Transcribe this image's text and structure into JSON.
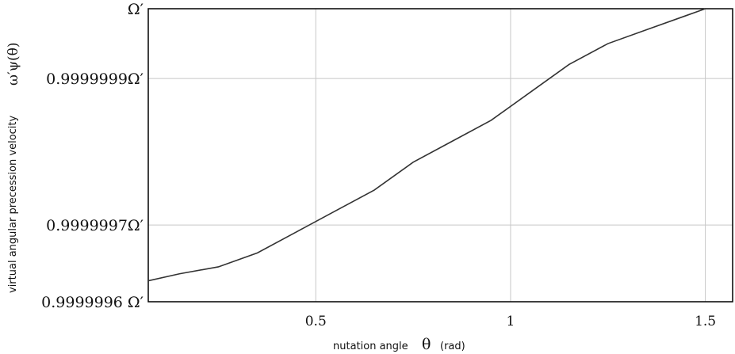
{
  "chart_data": {
    "type": "line",
    "title": "",
    "xlabel": "nutation  angle",
    "xlabel_symbol": "θ",
    "xlabel_unit": "(rad)",
    "ylabel": "virtual angular precession velocity",
    "ylabel_symbol": "ω′ψ(θ)",
    "xlim": [
      0.07,
      1.57
    ],
    "ylim": [
      0.99999958,
      1.0
    ],
    "grid": true,
    "x_ticks": [
      {
        "value": 0.5,
        "label": "0.5"
      },
      {
        "value": 1.0,
        "label": "1"
      },
      {
        "value": 1.5,
        "label": "1.5"
      }
    ],
    "y_ticks": [
      {
        "value": 0.99999958,
        "label": "0.9999996 Ω′"
      },
      {
        "value": 0.99999969,
        "label": "0.9999997Ω′"
      },
      {
        "value": 0.9999999,
        "label": "0.9999999Ω′"
      },
      {
        "value": 1.0,
        "label": "Ω′"
      }
    ],
    "series": [
      {
        "name": "",
        "x": [
          0.07,
          0.15,
          0.25,
          0.35,
          0.45,
          0.55,
          0.65,
          0.75,
          0.85,
          0.95,
          1.05,
          1.15,
          1.25,
          1.35,
          1.45,
          1.5,
          1.57
        ],
        "y": [
          0.99999961,
          0.99999962,
          0.99999963,
          0.99999965,
          0.99999968,
          0.99999971,
          0.99999974,
          0.99999978,
          0.99999981,
          0.99999984,
          0.99999988,
          0.99999992,
          0.99999995,
          0.99999997,
          0.99999999,
          1.0,
          1.0
        ]
      }
    ]
  },
  "colors": {
    "line": "#333333",
    "grid": "#c8c8c8",
    "axis": "#000000"
  }
}
